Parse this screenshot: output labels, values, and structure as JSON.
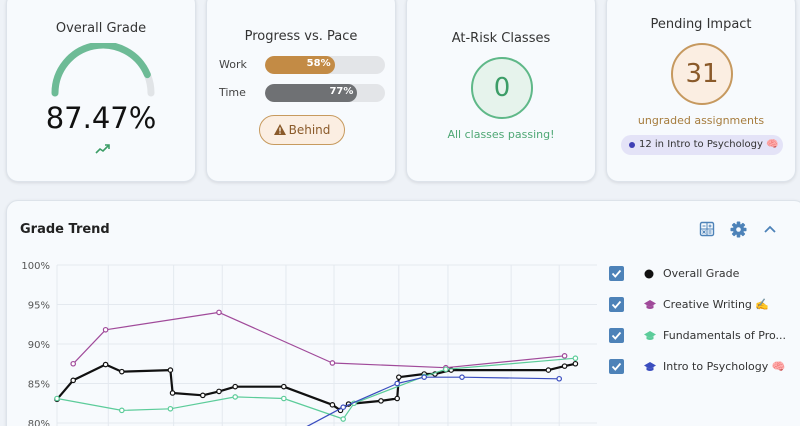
{
  "overall": {
    "title": "Overall Grade",
    "grade_text": "87.47%",
    "gauge_fraction": 0.8747,
    "trend_icon": "trending-up-icon"
  },
  "progress": {
    "title": "Progress vs. Pace",
    "work": {
      "label": "Work",
      "percent": 58,
      "percent_text": "58%"
    },
    "time": {
      "label": "Time",
      "percent": 77,
      "percent_text": "77%"
    },
    "status_label": "Behind",
    "status_icon": "warning-icon"
  },
  "at_risk": {
    "title": "At-Risk Classes",
    "count": "0",
    "message": "All classes passing!"
  },
  "pending": {
    "title": "Pending Impact",
    "count": "31",
    "subtitle": "ungraded assignments",
    "pill_text": "12 in Intro to Psychology 🧠"
  },
  "trend": {
    "title": "Grade Trend",
    "icons": [
      "calculator-icon",
      "gear-icon",
      "chevron-up-icon"
    ]
  },
  "colors": {
    "overall": "#111111",
    "creative": "#a04a9a",
    "fundamentals": "#5ccc9a",
    "psych": "#3a4dbf",
    "gauge": "#6dbb96",
    "work": "#c38b45",
    "time": "#6f7174"
  },
  "chart_data": {
    "type": "line",
    "y_ticks": [
      "100%",
      "95%",
      "90%",
      "85%",
      "80%"
    ],
    "ylim": [
      80,
      100
    ],
    "series": [
      {
        "name": "Overall Grade",
        "values": [
          [
            0,
            83.0
          ],
          [
            3,
            85.4
          ],
          [
            9,
            87.4
          ],
          [
            12,
            86.5
          ],
          [
            21,
            86.7
          ],
          [
            21.4,
            83.8
          ],
          [
            27,
            83.5
          ],
          [
            30,
            84.0
          ],
          [
            33,
            84.6
          ],
          [
            42,
            84.6
          ],
          [
            51,
            82.3
          ],
          [
            52.5,
            81.6
          ],
          [
            54,
            82.4
          ],
          [
            60,
            82.8
          ],
          [
            63,
            83.1
          ],
          [
            63.3,
            85.8
          ],
          [
            68,
            86.2
          ],
          [
            70,
            86.2
          ],
          [
            73,
            86.7
          ],
          [
            91,
            86.7
          ],
          [
            94,
            87.2
          ],
          [
            96,
            87.5
          ]
        ]
      },
      {
        "name": "Creative Writing ✍️",
        "values": [
          [
            3,
            87.5
          ],
          [
            9,
            91.8
          ],
          [
            30,
            94.0
          ],
          [
            51,
            87.6
          ],
          [
            72,
            87.0
          ],
          [
            94,
            88.5
          ]
        ]
      },
      {
        "name": "Fundamentals of Pro...",
        "values": [
          [
            0,
            83.1
          ],
          [
            12,
            81.6
          ],
          [
            21,
            81.8
          ],
          [
            33,
            83.3
          ],
          [
            42,
            83.1
          ],
          [
            53,
            80.5
          ],
          [
            55,
            82.5
          ],
          [
            68,
            85.9
          ],
          [
            72,
            86.8
          ],
          [
            96,
            88.2
          ]
        ]
      },
      {
        "name": "Intro to Psychology 🧠",
        "values": [
          [
            42,
            78.0
          ],
          [
            53,
            82.0
          ],
          [
            63,
            85.0
          ],
          [
            68,
            85.8
          ],
          [
            75,
            85.8
          ],
          [
            93,
            85.6
          ]
        ]
      }
    ]
  }
}
